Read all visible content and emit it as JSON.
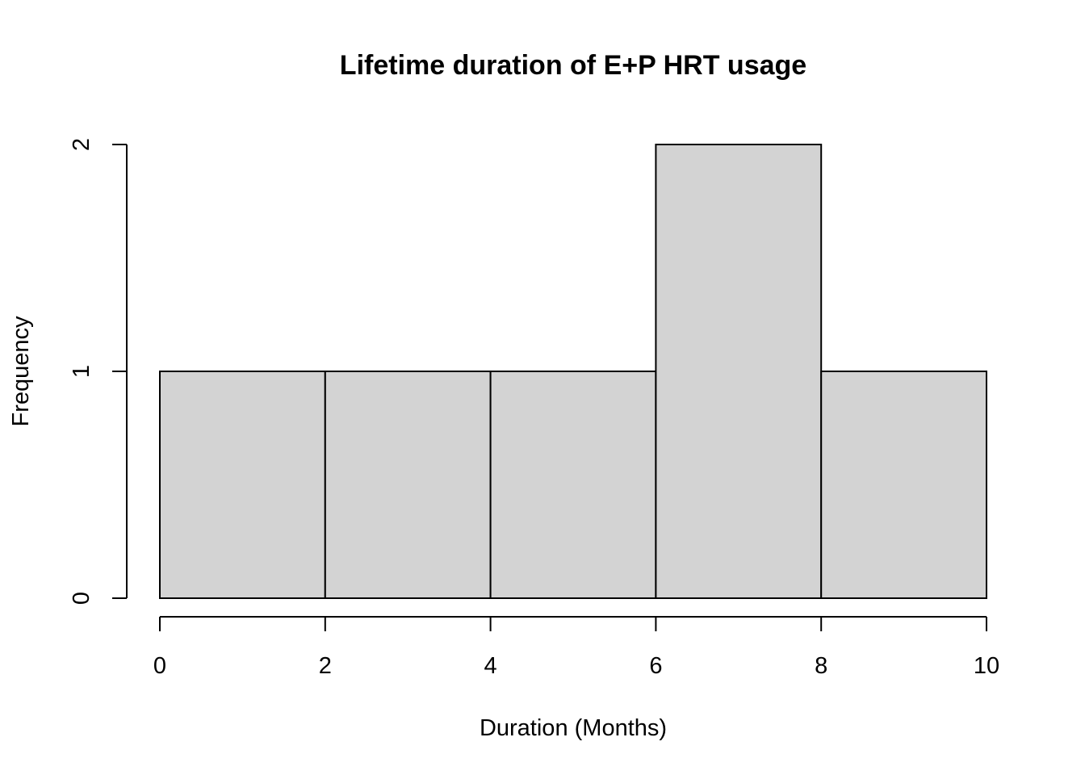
{
  "chart_data": {
    "type": "bar",
    "title": "Lifetime duration of E+P HRT usage",
    "xlabel": "Duration (Months)",
    "ylabel": "Frequency",
    "bins": [
      {
        "from": 0,
        "to": 2,
        "count": 1
      },
      {
        "from": 2,
        "to": 4,
        "count": 1
      },
      {
        "from": 4,
        "to": 6,
        "count": 1
      },
      {
        "from": 6,
        "to": 8,
        "count": 2
      },
      {
        "from": 8,
        "to": 10,
        "count": 1
      }
    ],
    "x_ticks": [
      "0",
      "2",
      "4",
      "6",
      "8",
      "10"
    ],
    "y_ticks": [
      "0",
      "1",
      "2"
    ],
    "xlim": [
      0,
      10
    ],
    "ylim": [
      0,
      2
    ],
    "grid": false,
    "legend": "none",
    "bar_fill": "#d3d3d3",
    "bar_stroke": "#000000"
  }
}
